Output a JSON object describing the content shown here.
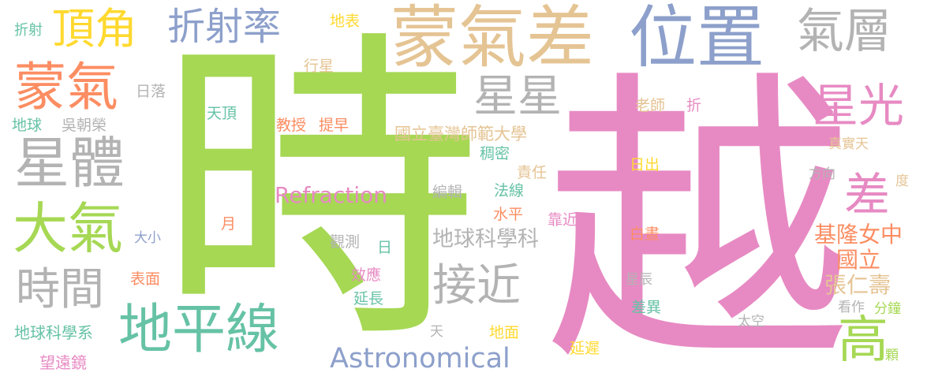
{
  "colors": {
    "green": "#a6d854",
    "pink": "#e78ac3",
    "gray": "#b3b3b3",
    "tan": "#e5c494",
    "blue": "#8da0cb",
    "orange": "#fc8d62",
    "teal": "#66c2a5",
    "yellow": "#ffd92f",
    "background": "#ffffff"
  },
  "words": {
    "shi": "時",
    "yue": "越",
    "mengqicha": "蒙氣差",
    "weizhi": "位置",
    "xingti": "星體",
    "dipingxian": "地平線",
    "zheshelv": "折射率",
    "qiceng": "氣層",
    "mengqi": "蒙氣",
    "daqi": "大氣",
    "dingjiao": "頂角",
    "xingxing": "星星",
    "xingguang": "星光",
    "shijian": "時間",
    "jiejin": "接近",
    "cha": "差",
    "gao": "高",
    "astronomical": "Astronomical",
    "refraction": "Refraction",
    "diqiukexueke": "地球科學科",
    "jilongnvzhong": "基隆女中",
    "guoli": "國立",
    "zhangrenshou": "張仁壽",
    "guolitaiwan": "國立臺灣師範大學",
    "diqiukexuexi": "地球科學系",
    "wangyuanjing": "望遠鏡",
    "zheshe_small": "折射",
    "dibiao": "地表",
    "hangxing": "行星",
    "riluo": "日落",
    "diqiu": "地球",
    "wuchaorong": "吳朝榮",
    "tianding": "天頂",
    "jiaoshou": "教授",
    "tizao": "提早",
    "choumi": "稠密",
    "laoshi": "老師",
    "zhe": "折",
    "zhenshitian": "真實天",
    "zeren": "責任",
    "richu": "日出",
    "fangxiang": "方向",
    "bianji": "編輯",
    "faxian": "法線",
    "du": "度",
    "shuiping": "水平",
    "kaojin": "靠近",
    "daxiao": "大小",
    "yue_small": "月",
    "baizhou": "白晝",
    "guance": "觀測",
    "ri": "日",
    "xiaoying": "效應",
    "biaomian": "表面",
    "xingchen": "星辰",
    "yanchang": "延長",
    "chayi": "差異",
    "kanzuo": "看作",
    "fenzhong": "分鐘",
    "taikong": "太空",
    "tian": "天",
    "dimian": "地面",
    "yanchi": "延遲",
    "lei": "顆"
  }
}
